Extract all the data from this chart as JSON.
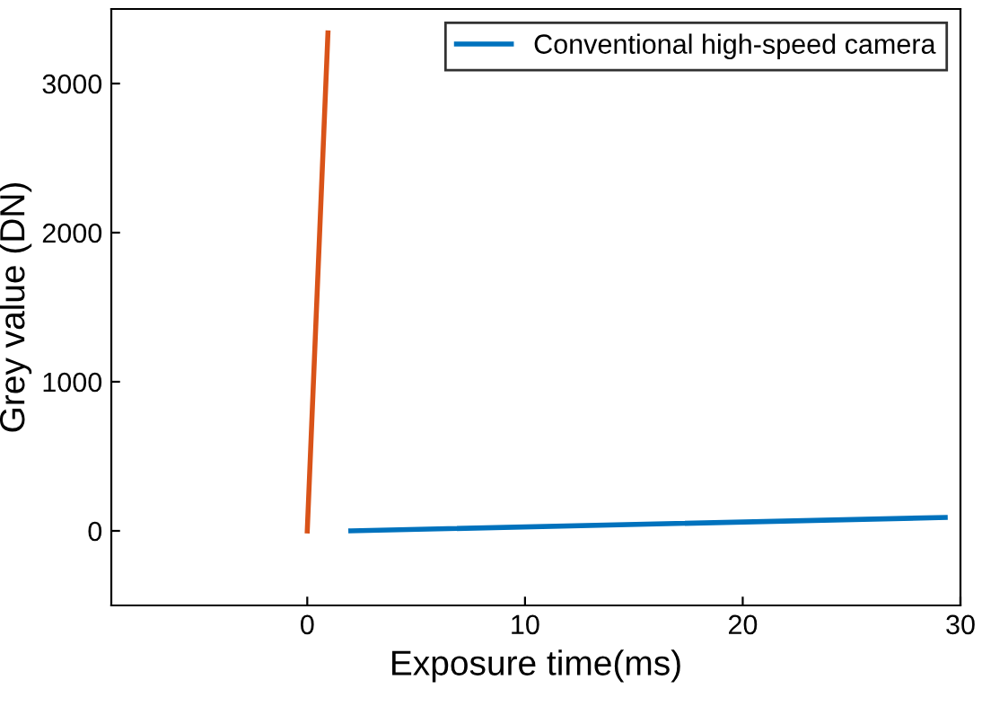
{
  "chart_data": {
    "type": "line",
    "xlabel": "Exposure time(ms)",
    "ylabel": "Grey value (DN)",
    "series": [
      {
        "color": "#d95319",
        "x": [
          0,
          0.95
        ],
        "values": [
          0,
          3340
        ]
      },
      {
        "name": "Conventional high-speed camera",
        "color": "#0072bd",
        "x": [
          2,
          29.3
        ],
        "values": [
          0,
          90
        ]
      }
    ],
    "xlim": [
      -9,
      30
    ],
    "xticks": [
      0,
      10,
      20,
      30
    ],
    "ylim": [
      -500,
      3500
    ],
    "yticks": [
      0,
      1000,
      2000,
      3000
    ],
    "legend": "top right",
    "grid": false
  }
}
